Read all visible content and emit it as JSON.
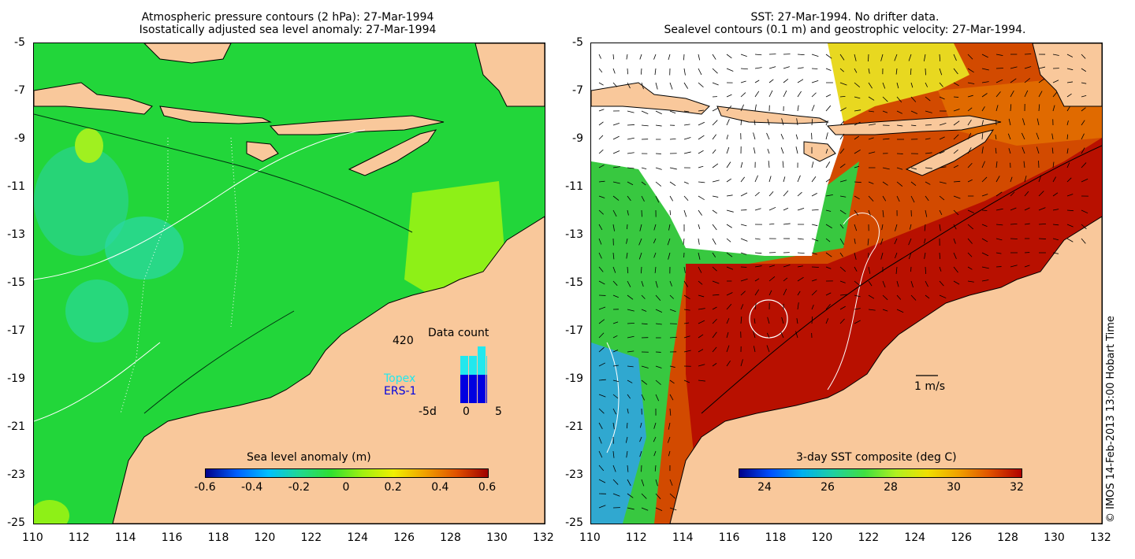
{
  "left_panel": {
    "title_line1": "Atmospheric pressure contours (2 hPa): 27-Mar-1994",
    "title_line2": "Isostatically adjusted sea level anomaly: 27-Mar-1994",
    "colorbar_label": "Sea level anomaly (m)",
    "colorbar_ticks": [
      "-0.6",
      "-0.4",
      "-0.2",
      "0",
      "0.2",
      "0.4",
      "0.6"
    ],
    "inset": {
      "title": "Data count",
      "max_label": "420",
      "series_labels": [
        "Topex",
        "ERS-1"
      ],
      "x_tick_labels": [
        "-5d",
        "0",
        "5"
      ],
      "topex_counts": [
        0.3,
        0.3,
        0.45,
        0.3,
        0.35,
        0.3,
        0.38,
        0.25
      ],
      "ers_counts": [
        0.45,
        0.45,
        0.45,
        0.45,
        0.5,
        0.45,
        0.45,
        0.45
      ]
    }
  },
  "right_panel": {
    "title_line1": "SST: 27-Mar-1994. No drifter data.",
    "title_line2": "Sealevel contours (0.1 m) and geostrophic velocity: 27-Mar-1994.",
    "colorbar_label": "3-day SST composite (deg C)",
    "colorbar_ticks": [
      "24",
      "26",
      "28",
      "30",
      "32"
    ],
    "scale_arrow_label": "1 m/s"
  },
  "axes": {
    "lat_labels": [
      "-5",
      "-7",
      "-9",
      "-11",
      "-13",
      "-15",
      "-17",
      "-19",
      "-21",
      "-23",
      "-25"
    ],
    "lon_labels": [
      "110",
      "112",
      "114",
      "116",
      "118",
      "120",
      "122",
      "124",
      "126",
      "128",
      "130",
      "132"
    ]
  },
  "credit": "© IMOS 14-Feb-2013 13:00 Hobart Time",
  "colors": {
    "land": "#f9c89b",
    "ocean_green": "#22d63a",
    "ocean_lime": "#8ef017",
    "ocean_teal": "#2bd9a0",
    "sst_red": "#c01200",
    "sst_orange": "#e06a00",
    "topex": "#22e8ee",
    "ers1": "#0000e0"
  }
}
